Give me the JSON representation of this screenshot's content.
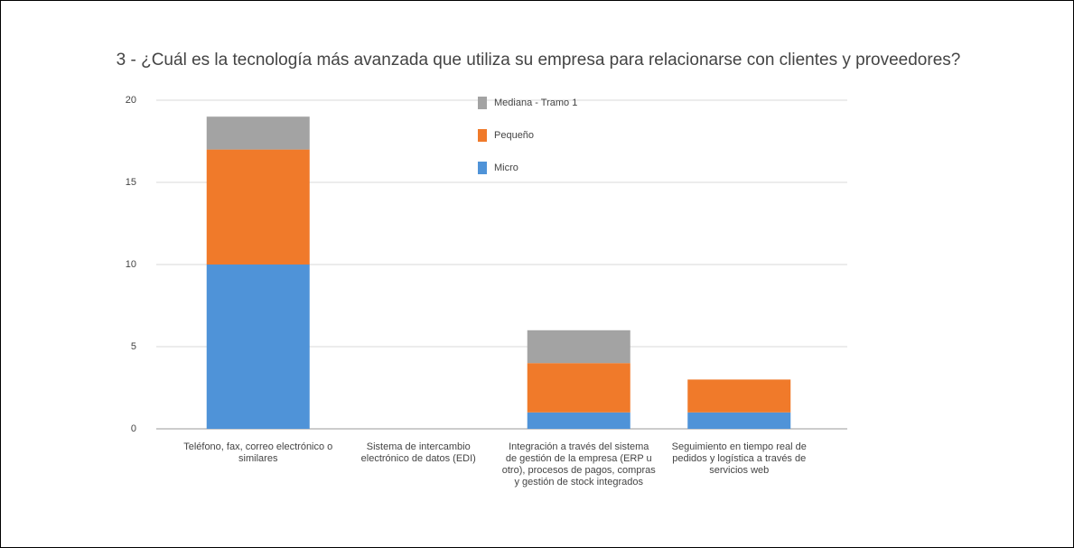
{
  "chart_data": {
    "type": "bar",
    "stacked": true,
    "title": "3 - ¿Cuál es la tecnología más avanzada que utiliza su empresa para relacionarse con clientes y proveedores?",
    "categories": [
      "Teléfono, fax, correo electrónico o similares",
      "Sistema de intercambio electrónico de datos (EDI)",
      "Integración a través del sistema de gestión de la empresa (ERP u otro), procesos de pagos, compras y gestión de stock integrados",
      "Seguimiento en tiempo real de pedidos y logística a través de servicios web"
    ],
    "series": [
      {
        "name": "Micro",
        "color": "#4f93d8",
        "values": [
          10,
          0,
          1,
          1
        ]
      },
      {
        "name": "Pequeño",
        "color": "#f07a2a",
        "values": [
          7,
          0,
          3,
          2
        ]
      },
      {
        "name": "Mediana - Tramo 1",
        "color": "#a3a3a3",
        "values": [
          2,
          0,
          2,
          0
        ]
      }
    ],
    "ylim": [
      0,
      20
    ],
    "yticks": [
      0,
      5,
      10,
      15,
      20
    ],
    "grid": true,
    "legend": "top"
  }
}
